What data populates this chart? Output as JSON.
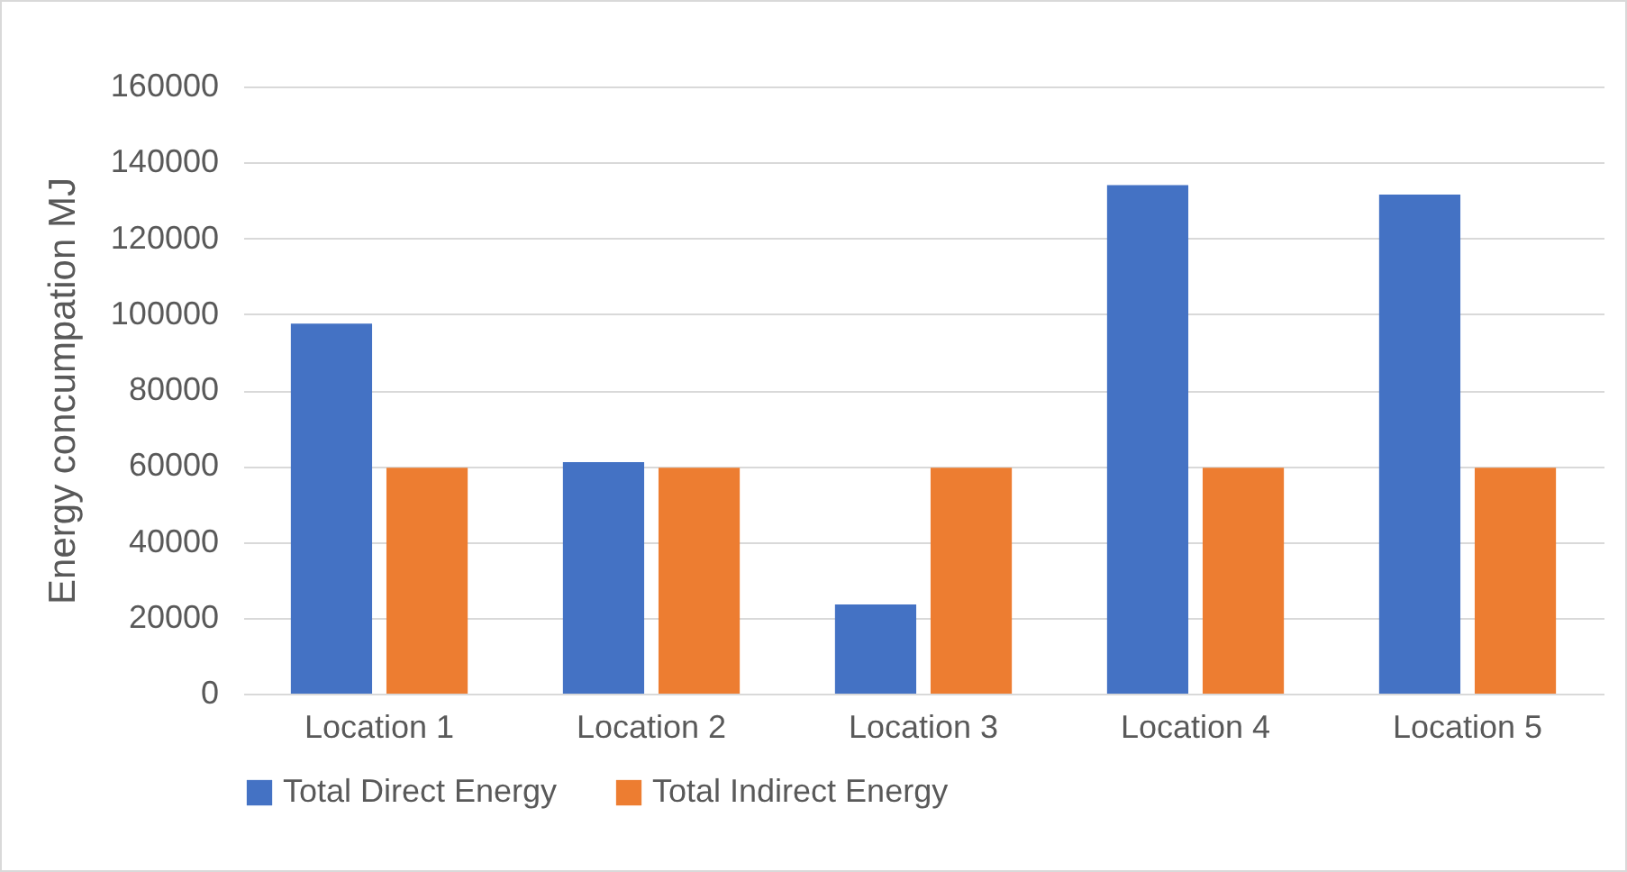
{
  "chart_data": {
    "type": "bar",
    "ylabel": "Energy concumpation MJ",
    "categories": [
      "Location 1",
      "Location 2",
      "Location 3",
      "Location 4",
      "Location 5"
    ],
    "series": [
      {
        "name": "Total Direct Energy",
        "color": "#4472c4",
        "values": [
          97500,
          61000,
          23500,
          134000,
          131500
        ]
      },
      {
        "name": "Total Indirect Energy",
        "color": "#ed7d31",
        "values": [
          59500,
          59500,
          59500,
          59500,
          59500
        ]
      }
    ],
    "ylim": [
      0,
      160000
    ],
    "yticks": [
      0,
      20000,
      40000,
      60000,
      80000,
      100000,
      120000,
      140000,
      160000
    ],
    "grid": "y",
    "legend": "bottom"
  }
}
